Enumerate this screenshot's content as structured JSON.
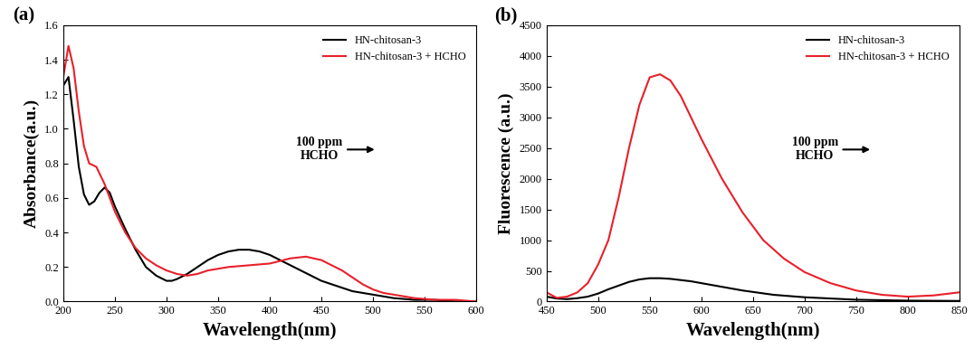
{
  "chart_data": [
    {
      "type": "line",
      "title": "(a)",
      "x_label": "Wavelength(nm)",
      "y_label": "Absorbance(a.u.)",
      "xlim": [
        200,
        600
      ],
      "xticks": [
        200,
        250,
        300,
        350,
        400,
        450,
        500,
        550,
        600
      ],
      "ylim": [
        0.0,
        1.6
      ],
      "yticks": [
        0.0,
        0.2,
        0.4,
        0.6,
        0.8,
        1.0,
        1.2,
        1.4,
        1.6
      ],
      "legend": "upper right",
      "annotations": [
        {
          "text": "100 ppm\nHCHO"
        }
      ],
      "series": [
        {
          "name": "HN-chitosan-3",
          "color": "#000000",
          "x": [
            200,
            205,
            210,
            215,
            220,
            225,
            230,
            235,
            240,
            245,
            250,
            260,
            270,
            280,
            290,
            300,
            305,
            310,
            320,
            330,
            340,
            350,
            360,
            370,
            380,
            390,
            400,
            410,
            420,
            430,
            440,
            450,
            460,
            470,
            480,
            500,
            520,
            540,
            560,
            580,
            600
          ],
          "values": [
            1.25,
            1.3,
            1.05,
            0.78,
            0.62,
            0.56,
            0.58,
            0.63,
            0.66,
            0.63,
            0.55,
            0.42,
            0.3,
            0.2,
            0.15,
            0.12,
            0.12,
            0.13,
            0.16,
            0.2,
            0.24,
            0.27,
            0.29,
            0.3,
            0.3,
            0.29,
            0.27,
            0.24,
            0.21,
            0.18,
            0.15,
            0.12,
            0.1,
            0.08,
            0.06,
            0.04,
            0.02,
            0.01,
            0.01,
            0.0,
            0.0
          ]
        },
        {
          "name": "HN-chitosan-3 + HCHO",
          "color": "#e8202a",
          "x": [
            200,
            205,
            210,
            215,
            220,
            225,
            232,
            240,
            245,
            250,
            260,
            270,
            280,
            290,
            300,
            310,
            320,
            330,
            340,
            350,
            360,
            380,
            400,
            420,
            435,
            450,
            460,
            470,
            480,
            490,
            500,
            510,
            520,
            540,
            560,
            580,
            600
          ],
          "values": [
            1.3,
            1.48,
            1.35,
            1.1,
            0.9,
            0.8,
            0.78,
            0.68,
            0.6,
            0.52,
            0.4,
            0.31,
            0.25,
            0.21,
            0.18,
            0.16,
            0.15,
            0.16,
            0.18,
            0.19,
            0.2,
            0.21,
            0.22,
            0.25,
            0.26,
            0.24,
            0.21,
            0.18,
            0.14,
            0.1,
            0.07,
            0.05,
            0.04,
            0.02,
            0.01,
            0.01,
            0.0
          ]
        }
      ]
    },
    {
      "type": "line",
      "title": "(b)",
      "x_label": "Wavelength(nm)",
      "y_label": "Fluorescence (a.u.)",
      "xlim": [
        450,
        850
      ],
      "xticks": [
        450,
        500,
        550,
        600,
        650,
        700,
        750,
        800,
        850
      ],
      "ylim": [
        0,
        4500
      ],
      "yticks": [
        0,
        500,
        1000,
        1500,
        2000,
        2500,
        3000,
        3500,
        4000,
        4500
      ],
      "legend": "upper right",
      "annotations": [
        {
          "text": "100 ppm\nHCHO"
        }
      ],
      "series": [
        {
          "name": "HN-chitosan-3",
          "color": "#000000",
          "x": [
            450,
            460,
            470,
            480,
            490,
            500,
            510,
            520,
            530,
            540,
            550,
            560,
            570,
            580,
            590,
            600,
            620,
            640,
            670,
            700,
            750,
            800,
            850
          ],
          "values": [
            80,
            50,
            40,
            55,
            80,
            130,
            200,
            260,
            320,
            360,
            380,
            380,
            370,
            350,
            330,
            300,
            240,
            180,
            110,
            70,
            30,
            15,
            10
          ]
        },
        {
          "name": "HN-chitosan-3 + HCHO",
          "color": "#e8202a",
          "x": [
            450,
            460,
            470,
            480,
            490,
            500,
            510,
            520,
            530,
            540,
            550,
            560,
            570,
            580,
            590,
            600,
            620,
            640,
            660,
            680,
            700,
            725,
            750,
            775,
            800,
            825,
            850
          ],
          "values": [
            150,
            60,
            80,
            150,
            300,
            600,
            1000,
            1700,
            2500,
            3200,
            3650,
            3700,
            3600,
            3350,
            3000,
            2650,
            2000,
            1450,
            1000,
            700,
            480,
            300,
            180,
            110,
            80,
            100,
            150
          ]
        }
      ]
    }
  ]
}
